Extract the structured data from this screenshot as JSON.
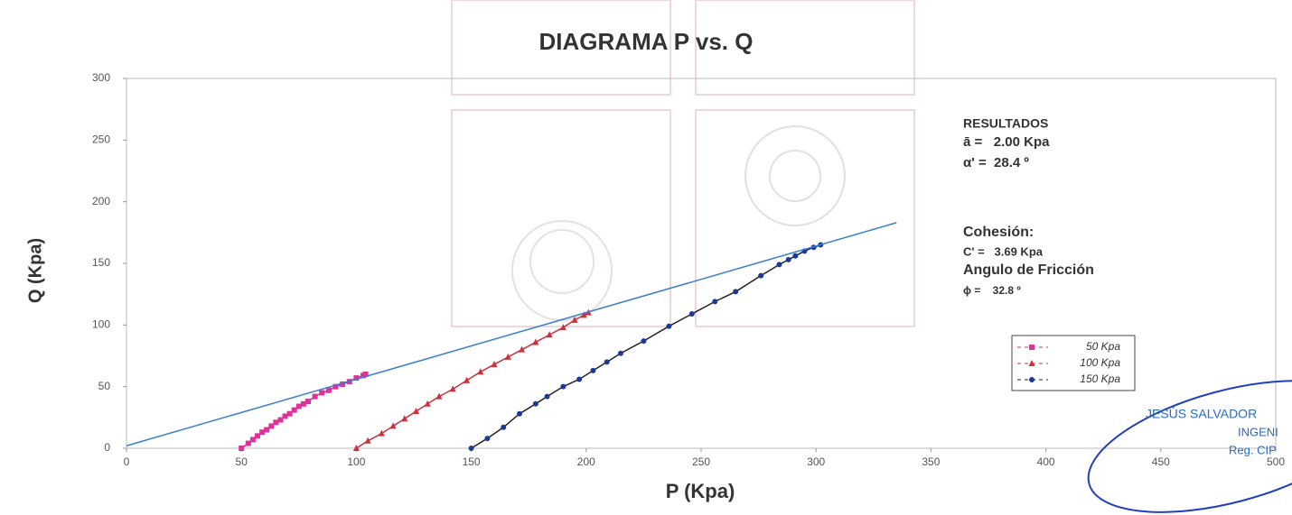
{
  "chart_data": {
    "type": "scatter",
    "title": "DIAGRAMA P vs. Q",
    "x_label": "P  (Kpa)",
    "y_label": "Q (Kpa)",
    "xlim": [
      0,
      500
    ],
    "ylim": [
      0,
      300
    ],
    "xticks": [
      0,
      50,
      100,
      150,
      200,
      250,
      300,
      350,
      400,
      450,
      500
    ],
    "yticks": [
      0,
      50,
      100,
      150,
      200,
      250,
      300
    ],
    "legend": "right",
    "series": [
      {
        "name": "50 Kpa",
        "color": "#e0309a",
        "line_color": "#d0308a",
        "marker": "square",
        "x": [
          50,
          53,
          55,
          57,
          59,
          61,
          63,
          65,
          67,
          69,
          71,
          73,
          75,
          77,
          79,
          82,
          85,
          88,
          91,
          94,
          97,
          100,
          103,
          104
        ],
        "values": [
          0,
          4,
          7,
          10,
          13,
          15,
          18,
          21,
          23,
          26,
          28,
          31,
          34,
          36,
          38,
          42,
          45,
          47,
          50,
          52,
          54,
          57,
          59,
          60
        ]
      },
      {
        "name": "100 Kpa",
        "color": "#d0303a",
        "line_color": "#c83040",
        "marker": "triangle",
        "x": [
          100,
          105,
          111,
          116,
          121,
          126,
          131,
          136,
          142,
          148,
          154,
          160,
          166,
          172,
          178,
          184,
          190,
          195,
          199,
          201
        ],
        "values": [
          0,
          6,
          12,
          18,
          24,
          30,
          36,
          42,
          48,
          55,
          62,
          68,
          74,
          80,
          86,
          92,
          98,
          104,
          108,
          110
        ]
      },
      {
        "name": "150 Kpa",
        "color": "#1a3a9a",
        "line_color": "#222222",
        "marker": "circle",
        "x": [
          150,
          157,
          164,
          171,
          178,
          183,
          190,
          197,
          203,
          209,
          215,
          225,
          236,
          246,
          256,
          265,
          276,
          284,
          288,
          291,
          295,
          299,
          302
        ],
        "values": [
          0,
          8,
          17,
          28,
          36,
          42,
          50,
          56,
          63,
          70,
          77,
          87,
          99,
          109,
          119,
          127,
          140,
          149,
          153,
          156,
          160,
          163,
          165
        ]
      },
      {
        "color": "#3a7fd0",
        "line_color": "#3a7fd0",
        "marker": "none",
        "x": [
          0,
          335
        ],
        "values": [
          2,
          183
        ]
      }
    ],
    "annotations": [
      "RESULTADOS",
      "ā =   2.00 Kpa",
      "α' =  28.4 º",
      "Cohesión:",
      "C' =   3.69 Kpa",
      "Angulo de Fricción",
      "ϕ =    32.8 º"
    ],
    "stamp": [
      "JESÚS SALVADOR",
      "INGENI",
      "Reg. CIP"
    ]
  }
}
